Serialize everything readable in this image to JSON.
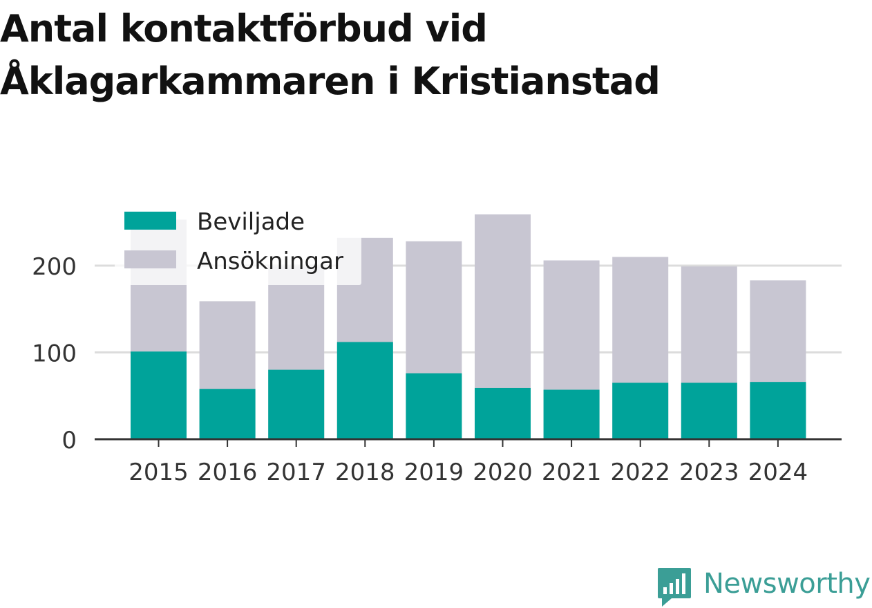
{
  "chart_data": {
    "type": "bar",
    "stacked": "overlay",
    "title": "Antal kontaktförbud vid Åklagarkammaren i Kristianstad",
    "categories": [
      "2015",
      "2016",
      "2017",
      "2018",
      "2019",
      "2020",
      "2021",
      "2022",
      "2023",
      "2024"
    ],
    "series": [
      {
        "name": "Beviljade",
        "color": "#00a39a",
        "values": [
          101,
          58,
          80,
          112,
          76,
          59,
          57,
          65,
          65,
          66
        ]
      },
      {
        "name": "Ansökningar",
        "color": "#c8c6d2",
        "values": [
          253,
          159,
          199,
          232,
          228,
          259,
          206,
          210,
          199,
          183
        ]
      }
    ],
    "yticks": [
      0,
      100,
      200
    ],
    "ylim": [
      0,
      260
    ],
    "grid": true,
    "legend_position": "top-left",
    "xlabel": "",
    "ylabel": ""
  },
  "logo": {
    "text": "Newsworthy",
    "color": "#3b9e96"
  }
}
